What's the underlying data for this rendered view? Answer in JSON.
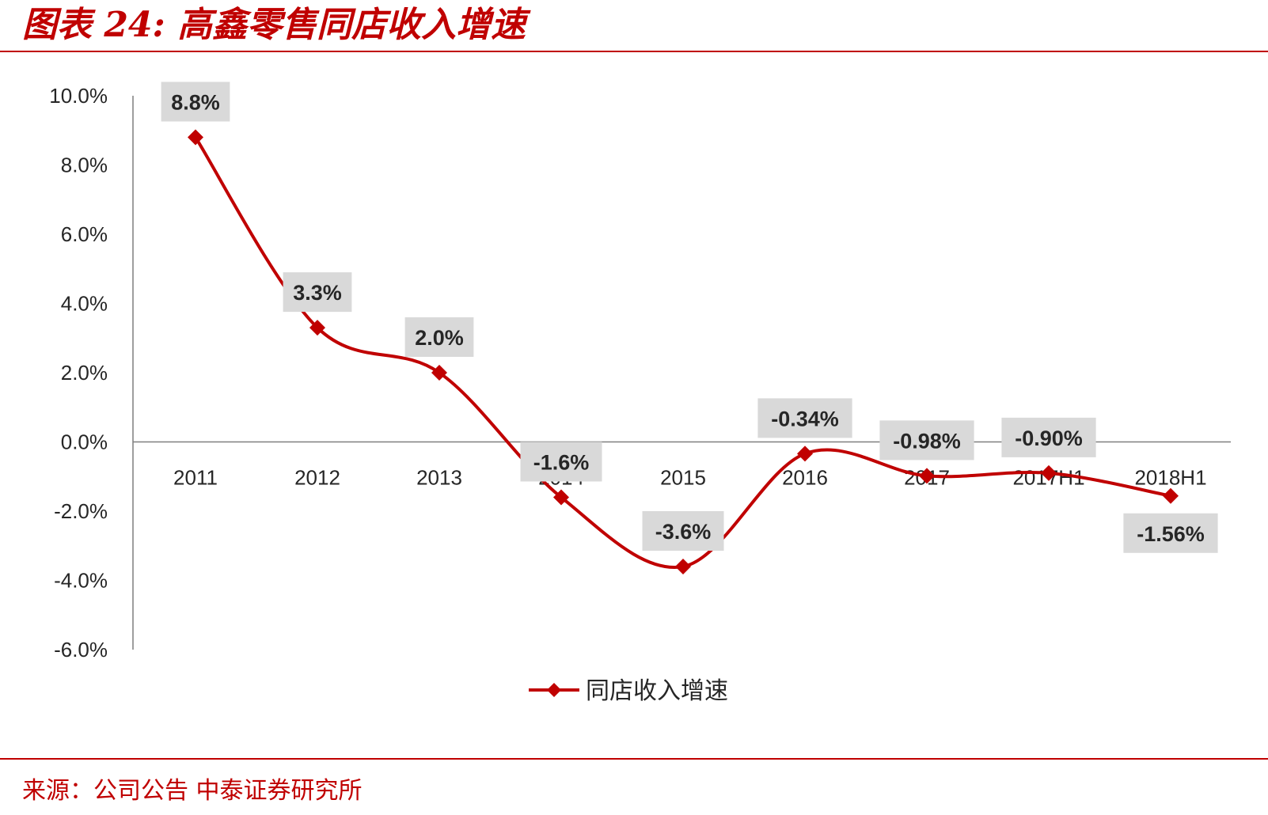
{
  "title": "图表 24: 高鑫零售同店收入增速",
  "source": "来源：公司公告  中泰证券研究所",
  "chart_data": {
    "type": "line",
    "smooth": true,
    "categories": [
      "2011",
      "2012",
      "2013",
      "2014",
      "2015",
      "2016",
      "2017",
      "2017H1",
      "2018H1"
    ],
    "series": [
      {
        "name": "同店收入增速",
        "values": [
          8.8,
          3.3,
          2.0,
          -1.6,
          -3.6,
          -0.34,
          -0.98,
          -0.9,
          -1.56
        ],
        "labels": [
          "8.8%",
          "3.3%",
          "2.0%",
          "-1.6%",
          "-3.6%",
          "-0.34%",
          "-0.98%",
          "-0.90%",
          "-1.56%"
        ],
        "label_position": [
          "above",
          "above",
          "above",
          "above",
          "above",
          "above",
          "above",
          "above",
          "below"
        ],
        "color": "#c00000",
        "marker": "diamond"
      }
    ],
    "y_ticks": [
      "10.0%",
      "8.0%",
      "6.0%",
      "4.0%",
      "2.0%",
      "0.0%",
      "-2.0%",
      "-4.0%",
      "-6.0%"
    ],
    "y_tick_values": [
      10,
      8,
      6,
      4,
      2,
      0,
      -2,
      -4,
      -6
    ],
    "ylim": [
      -6,
      10
    ],
    "grid": false,
    "legend": "bottom-center",
    "label_box_color": "#d9d9d9"
  }
}
